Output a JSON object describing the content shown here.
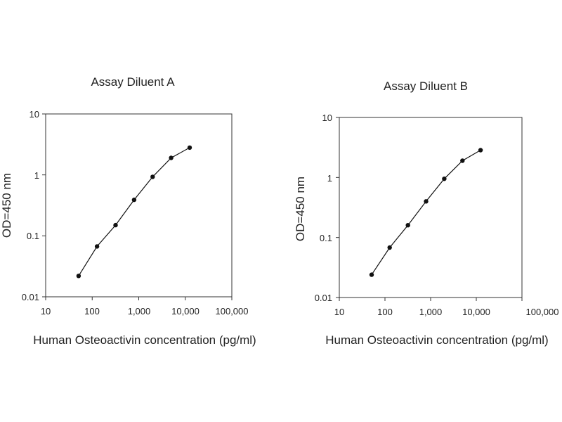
{
  "chart_data": [
    {
      "type": "line",
      "title": "Assay Diluent A",
      "xlabel": "Human Osteoactivin concentration (pg/ml)",
      "ylabel": "OD=450 nm",
      "xscale": "log",
      "yscale": "log",
      "xlim": [
        10,
        100000
      ],
      "ylim": [
        0.01,
        10
      ],
      "xticks": [
        "10",
        "100",
        "1,000",
        "10,000",
        "100,000"
      ],
      "yticks": [
        "0.01",
        "0.1",
        "1",
        "10"
      ],
      "grid": false,
      "series": [
        {
          "x": [
            51,
            127,
            318,
            795,
            1988,
            4969,
            12422
          ],
          "y": [
            0.022,
            0.067,
            0.15,
            0.39,
            0.93,
            1.9,
            2.8
          ]
        }
      ]
    },
    {
      "type": "line",
      "title": "Assay Diluent B",
      "xlabel": "Human Osteoactivin concentration (pg/ml)",
      "ylabel": "OD=450 nm",
      "xscale": "log",
      "yscale": "log",
      "xlim": [
        10,
        100000
      ],
      "ylim": [
        0.01,
        10
      ],
      "xticks": [
        "10",
        "100",
        "1,000",
        "10,000",
        "100,000"
      ],
      "yticks": [
        "0.01",
        "0.1",
        "1",
        "10"
      ],
      "grid": false,
      "series": [
        {
          "x": [
            51,
            127,
            318,
            795,
            1988,
            4969,
            12422
          ],
          "y": [
            0.024,
            0.068,
            0.16,
            0.4,
            0.95,
            1.9,
            2.85
          ]
        }
      ]
    }
  ]
}
